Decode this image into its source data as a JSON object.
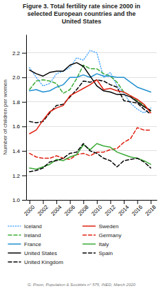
{
  "chart_data": {
    "type": "line",
    "title": "Figure 3. Total fertility rate since 2000 in\nselected European countries and the\nUnited States",
    "y_label": "Number of children per women",
    "annotations": [
      "G. Pison, Population & Sociétés n° 575, INED, March 2020"
    ],
    "x": [
      2000,
      2001,
      2002,
      2003,
      2004,
      2005,
      2006,
      2007,
      2008,
      2009,
      2010,
      2011,
      2012,
      2013,
      2014,
      2015,
      2016,
      2017,
      2018
    ],
    "xlim": [
      1999.5,
      2018.9
    ],
    "xticks": [
      2000,
      2002,
      2004,
      2006,
      2008,
      2010,
      2012,
      2014,
      2016,
      2018
    ],
    "ylim": [
      1.0,
      2.35
    ],
    "yticks": [
      {
        "value": 1.0,
        "label": "1.0"
      },
      {
        "value": 1.2,
        "label": "1.2"
      },
      {
        "value": 1.4,
        "label": "1.4"
      },
      {
        "value": 1.6,
        "label": "1.6"
      },
      {
        "value": 1.8,
        "label": "1.8"
      },
      {
        "value": 2.0,
        "label": "2.0"
      },
      {
        "value": 2.2,
        "label": "2.2"
      }
    ],
    "grid": true,
    "legend": "bottom",
    "series": [
      {
        "name": "Iceland",
        "color": "#4da6ff",
        "line_style": "dotted",
        "values": [
          2.08,
          2.0,
          1.93,
          1.95,
          2.03,
          2.05,
          2.08,
          2.16,
          2.14,
          2.22,
          2.2,
          2.0,
          2.04,
          1.93,
          1.87,
          1.79,
          1.74,
          1.71,
          1.75
        ]
      },
      {
        "name": "Ireland",
        "color": "#3aaa35",
        "line_style": "dashed",
        "values": [
          1.9,
          1.97,
          1.98,
          1.97,
          1.95,
          1.87,
          1.9,
          1.99,
          2.1,
          2.07,
          2.07,
          2.03,
          2.01,
          1.96,
          1.88,
          1.85,
          1.81,
          1.77,
          1.72
        ]
      },
      {
        "name": "France",
        "color": "#2090d0",
        "line_style": "solid",
        "values": [
          1.89,
          1.9,
          1.88,
          1.89,
          1.92,
          1.94,
          2.0,
          2.0,
          2.02,
          2.0,
          2.03,
          2.01,
          2.01,
          2.0,
          2.0,
          1.96,
          1.92,
          1.9,
          1.88
        ]
      },
      {
        "name": "United States",
        "color": "#000000",
        "line_style": "solid",
        "values": [
          2.06,
          2.03,
          2.01,
          2.04,
          2.05,
          2.05,
          2.1,
          2.12,
          2.09,
          2.01,
          1.93,
          1.89,
          1.88,
          1.86,
          1.86,
          1.84,
          1.8,
          1.76,
          1.73
        ]
      },
      {
        "name": "United Kingdom",
        "color": "#000000",
        "line_style": "dashed",
        "values": [
          1.64,
          1.63,
          1.64,
          1.71,
          1.77,
          1.78,
          1.84,
          1.9,
          1.97,
          1.96,
          1.98,
          1.97,
          1.94,
          1.92,
          1.81,
          1.8,
          1.79,
          1.74,
          1.7
        ]
      },
      {
        "name": "Sweden",
        "color": "#e02010",
        "line_style": "solid",
        "values": [
          1.54,
          1.57,
          1.65,
          1.72,
          1.75,
          1.77,
          1.85,
          1.88,
          1.91,
          1.94,
          1.98,
          1.9,
          1.91,
          1.89,
          1.88,
          1.85,
          1.82,
          1.78,
          1.71
        ]
      },
      {
        "name": "Germany",
        "color": "#e02010",
        "line_style": "dashed",
        "values": [
          1.38,
          1.35,
          1.34,
          1.34,
          1.36,
          1.34,
          1.33,
          1.37,
          1.38,
          1.36,
          1.39,
          1.39,
          1.41,
          1.42,
          1.47,
          1.5,
          1.59,
          1.57,
          1.57
        ]
      },
      {
        "name": "Italy",
        "color": "#3aaa35",
        "line_style": "solid",
        "values": [
          1.26,
          1.25,
          1.27,
          1.29,
          1.33,
          1.32,
          1.35,
          1.37,
          1.45,
          1.41,
          1.46,
          1.44,
          1.43,
          1.39,
          1.37,
          1.35,
          1.34,
          1.32,
          1.29
        ]
      },
      {
        "name": "Spain",
        "color": "#000000",
        "line_style": "dashed",
        "values": [
          1.23,
          1.24,
          1.26,
          1.31,
          1.32,
          1.34,
          1.38,
          1.39,
          1.46,
          1.4,
          1.38,
          1.34,
          1.32,
          1.27,
          1.32,
          1.33,
          1.34,
          1.31,
          1.26
        ]
      }
    ]
  }
}
